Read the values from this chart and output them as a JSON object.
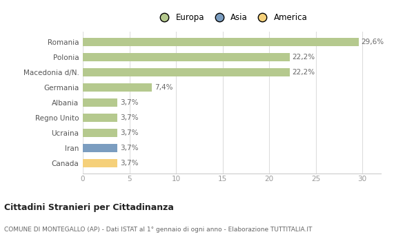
{
  "categories": [
    "Canada",
    "Iran",
    "Ucraina",
    "Regno Unito",
    "Albania",
    "Germania",
    "Macedonia d/N.",
    "Polonia",
    "Romania"
  ],
  "values": [
    3.7,
    3.7,
    3.7,
    3.7,
    3.7,
    7.4,
    22.2,
    22.2,
    29.6
  ],
  "labels": [
    "3,7%",
    "3,7%",
    "3,7%",
    "3,7%",
    "3,7%",
    "7,4%",
    "22,2%",
    "22,2%",
    "29,6%"
  ],
  "colors": [
    "#f5d07a",
    "#7b9dc0",
    "#b5c98e",
    "#b5c98e",
    "#b5c98e",
    "#b5c98e",
    "#b5c98e",
    "#b5c98e",
    "#b5c98e"
  ],
  "legend_labels": [
    "Europa",
    "Asia",
    "America"
  ],
  "legend_colors": [
    "#b5c98e",
    "#7b9dc0",
    "#f5d07a"
  ],
  "xlim": [
    0,
    32
  ],
  "xticks": [
    0,
    5,
    10,
    15,
    20,
    25,
    30
  ],
  "title": "Cittadini Stranieri per Cittadinanza",
  "subtitle": "COMUNE DI MONTEGALLO (AP) - Dati ISTAT al 1° gennaio di ogni anno - Elaborazione TUTTITALIA.IT",
  "background_color": "#ffffff",
  "bar_height": 0.55
}
